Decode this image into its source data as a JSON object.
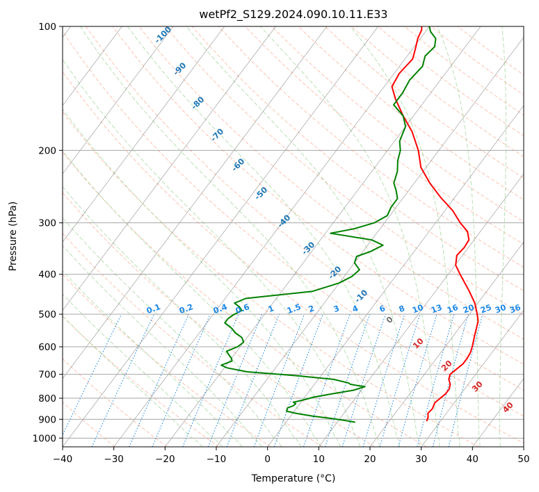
{
  "chart_data": {
    "type": "line",
    "chart_kind": "skew-T log-P diagram",
    "title": "wetPf2_S129.2024.090.10.11.E33",
    "xlabel": "Temperature (°C)",
    "ylabel": "Pressure (hPa)",
    "xlim": [
      -40,
      50
    ],
    "ylim": [
      1050,
      100
    ],
    "y_scale": "log",
    "grid": true,
    "x_ticks": [
      -40,
      -30,
      -20,
      -10,
      0,
      10,
      20,
      30,
      40,
      50
    ],
    "x_tick_labels": [
      "−40",
      "−30",
      "−20",
      "−10",
      "0",
      "10",
      "20",
      "30",
      "40",
      "50"
    ],
    "y_ticks": [
      100,
      200,
      300,
      400,
      500,
      600,
      700,
      800,
      900,
      1000
    ],
    "y_tick_labels": [
      "100",
      "200",
      "300",
      "400",
      "500",
      "600",
      "700",
      "800",
      "900",
      "1000"
    ],
    "colors": {
      "temperature": "#ff0000",
      "dewpoint": "#008000",
      "dry_adiabat": "#fcb19b",
      "moist_adiabat": "#a8d8a0",
      "mixing_ratio": "#1e88e5",
      "isotherm": "#808080",
      "isotherm_labels": "#1f77b4",
      "adiabat_labels": "#d62728",
      "dry_adiabat_far": "#d4c2a8"
    },
    "isotherm_labels": [
      "-100",
      "-90",
      "-80",
      "-70",
      "-60",
      "-50",
      "-40",
      "-30",
      "-20",
      "-10",
      "0",
      "10",
      "20",
      "30",
      "40"
    ],
    "isotherm_label_values": [
      -100,
      -90,
      -80,
      -70,
      -60,
      -50,
      -40,
      -30,
      -20,
      -10,
      0,
      10,
      20,
      30,
      40
    ],
    "mixing_ratio_labels": [
      "0.1",
      "0.2",
      "0.4",
      "0.6",
      "1",
      "1.5",
      "2",
      "3",
      "4",
      "6",
      "8",
      "10",
      "13",
      "16",
      "20",
      "25",
      "30",
      "36"
    ],
    "mixing_ratio_values": [
      0.1,
      0.2,
      0.4,
      0.6,
      1,
      1.5,
      2,
      3,
      4,
      6,
      8,
      10,
      13,
      16,
      20,
      25,
      30,
      36
    ],
    "series": [
      {
        "key": "temperature",
        "pressure": [
          910,
          890,
          870,
          850,
          820,
          800,
          780,
          760,
          740,
          720,
          700,
          680,
          660,
          640,
          620,
          600,
          560,
          520,
          500,
          470,
          440,
          420,
          400,
          380,
          360,
          345,
          330,
          315,
          300,
          280,
          260,
          240,
          220,
          200,
          180,
          165,
          150,
          140,
          130,
          120,
          113,
          107,
          102,
          100
        ],
        "values": [
          27.3,
          27.0,
          26.4,
          26.6,
          26.2,
          26.6,
          27.0,
          27.0,
          26.5,
          25.5,
          25.0,
          25.5,
          26.0,
          26.0,
          25.8,
          25.3,
          24.0,
          22.7,
          21.5,
          19.4,
          16.6,
          14.5,
          12.3,
          10.1,
          8.9,
          9.2,
          9.0,
          7.5,
          4.8,
          1.5,
          -2.8,
          -7.0,
          -11.0,
          -14.0,
          -18.0,
          -22.0,
          -26.0,
          -28.5,
          -29.0,
          -28.5,
          -29.5,
          -30.5,
          -31.0,
          -31.5
        ]
      },
      {
        "key": "dewpoint",
        "pressure": [
          915,
          905,
          895,
          885,
          870,
          860,
          845,
          835,
          825,
          818,
          812,
          805,
          795,
          780,
          765,
          750,
          745,
          740,
          735,
          720,
          705,
          690,
          675,
          665,
          650,
          640,
          628,
          615,
          600,
          585,
          570,
          555,
          540,
          525,
          513,
          502,
          490,
          480,
          470,
          458,
          440,
          420,
          405,
          390,
          375,
          362,
          352,
          340,
          330,
          318,
          310,
          300,
          288,
          275,
          262,
          250,
          240,
          225,
          212,
          200,
          190,
          175,
          165,
          155,
          145,
          135,
          125,
          118,
          112,
          107,
          103,
          100
        ],
        "values": [
          13.5,
          11.0,
          8.0,
          4.5,
          0.5,
          -1.5,
          -1.8,
          -1.0,
          -0.8,
          -1.5,
          -0.5,
          0.5,
          1.8,
          5.0,
          8.5,
          10.2,
          8.5,
          7.0,
          6.5,
          3.0,
          -5.0,
          -15.0,
          -19.5,
          -21.0,
          -19.5,
          -20.0,
          -21.0,
          -22.0,
          -20.5,
          -20.0,
          -21.0,
          -23.0,
          -24.5,
          -26.5,
          -26.5,
          -26.0,
          -25.0,
          -26.0,
          -27.5,
          -26.0,
          -14.0,
          -10.0,
          -8.5,
          -8.0,
          -10.0,
          -10.5,
          -8.5,
          -7.0,
          -10.0,
          -19.0,
          -15.0,
          -12.0,
          -10.5,
          -11.0,
          -11.0,
          -12.5,
          -14.0,
          -15.0,
          -16.5,
          -17.5,
          -19.0,
          -20.0,
          -22.0,
          -25.5,
          -25.5,
          -26.0,
          -25.5,
          -26.5,
          -26.0,
          -27.0,
          -29.0,
          -30.0
        ]
      }
    ]
  }
}
